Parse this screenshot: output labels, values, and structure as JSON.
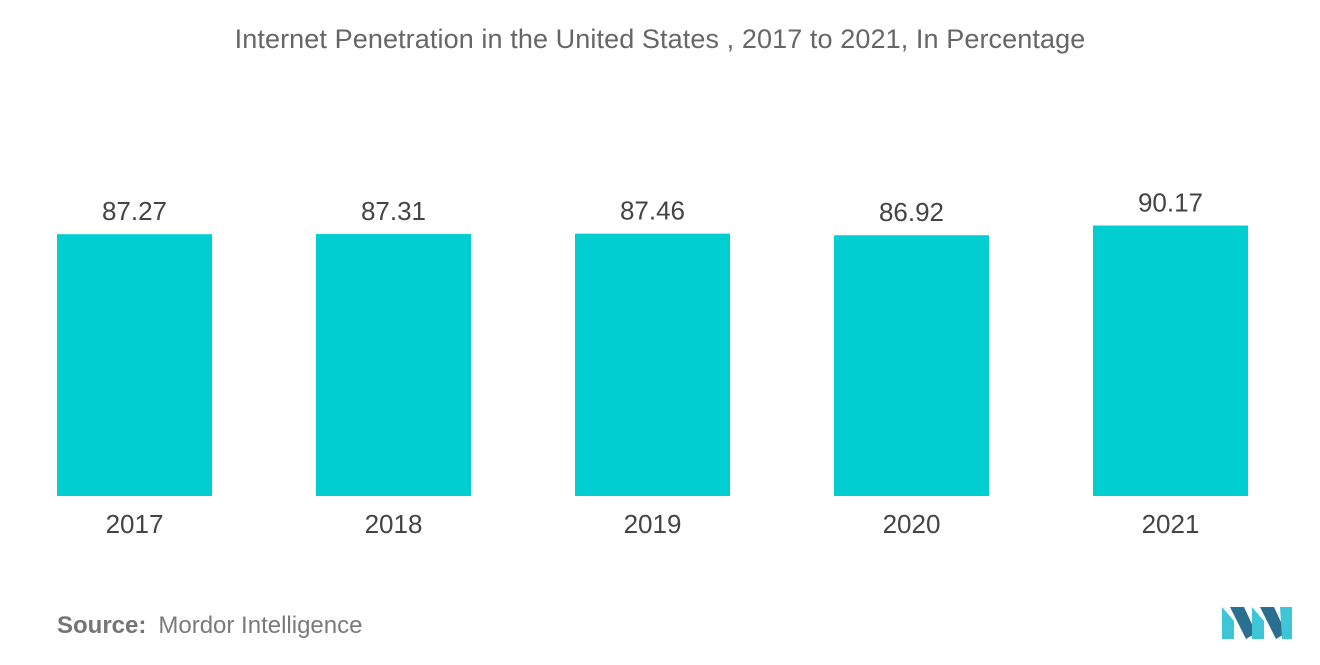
{
  "chart_data": {
    "type": "bar",
    "title": "Internet Penetration in the United States , 2017 to 2021, In Percentage",
    "categories": [
      "2017",
      "2018",
      "2019",
      "2020",
      "2021"
    ],
    "values": [
      87.27,
      87.31,
      87.46,
      86.92,
      90.17
    ],
    "value_labels": [
      "87.27",
      "87.31",
      "87.46",
      "86.92",
      "90.17"
    ],
    "xlabel": "",
    "ylabel": "",
    "grid": false,
    "legend": "none",
    "bar_color": "#00ced1"
  },
  "footer": {
    "source_label": "Source:",
    "source_text": "Mordor Intelligence"
  },
  "colors": {
    "bar": "#00ced1",
    "title_text": "#666666",
    "label_text": "#444444",
    "logo_dark": "#2a6f8f",
    "logo_light": "#3ec6d6"
  },
  "logo_icon": "mordor-intelligence-logo"
}
